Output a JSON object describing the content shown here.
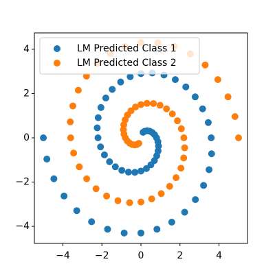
{
  "chart_data": {
    "type": "scatter",
    "xlim": [
      -5.46,
      5.46
    ],
    "ylim": [
      -4.77,
      4.74
    ],
    "xticks": [
      {
        "value": -4,
        "label": "−4"
      },
      {
        "value": -2,
        "label": "−2"
      },
      0,
      2,
      4
    ],
    "yticks": [
      {
        "value": -4,
        "label": "−4"
      },
      {
        "value": -2,
        "label": "−2"
      },
      0,
      2,
      4
    ],
    "legend": "upper-left",
    "series": [
      {
        "name": "LM Predicted Class 1",
        "color": "#1f77b4",
        "x": [
          -5.0,
          -4.82,
          -4.46,
          -3.94,
          -3.29,
          -2.53,
          -1.71,
          -0.86,
          0.0,
          0.82,
          1.58,
          2.24,
          2.79,
          3.21,
          3.49,
          3.62,
          3.6,
          3.45,
          3.16,
          2.78,
          2.3,
          1.76,
          1.18,
          0.58,
          0.0,
          -0.55,
          -1.04,
          -1.47,
          -1.8,
          -2.05,
          -2.19,
          -2.24,
          -2.2,
          -2.07,
          -1.87,
          -1.61,
          -1.31,
          -0.98,
          -0.64,
          -0.31,
          0.0,
          0.28,
          0.51,
          0.69,
          0.81,
          0.88,
          0.9,
          0.87,
          0.8,
          0.7,
          0.58,
          0.45,
          0.32,
          0.2,
          0.11
        ],
        "y": [
          0.0,
          -0.96,
          -1.85,
          -2.63,
          -3.29,
          -3.79,
          -4.13,
          -4.3,
          -4.3,
          -4.13,
          -3.81,
          -3.36,
          -2.79,
          -2.15,
          -1.44,
          -0.72,
          0.0,
          0.69,
          1.31,
          1.85,
          2.3,
          2.63,
          2.84,
          2.93,
          2.9,
          2.76,
          2.52,
          2.19,
          1.8,
          1.37,
          0.91,
          0.45,
          0.0,
          -0.41,
          -0.77,
          -1.08,
          -1.31,
          -1.47,
          -1.55,
          -1.56,
          -1.5,
          -1.39,
          -1.22,
          -1.03,
          -0.81,
          -0.59,
          -0.37,
          -0.17,
          0.0,
          0.14,
          0.24,
          0.3,
          0.32,
          0.3,
          0.25
        ]
      },
      {
        "name": "LM Predicted Class 2",
        "color": "#ff7f0e",
        "x": [
          5.0,
          4.82,
          4.46,
          3.94,
          3.29,
          2.53,
          1.71,
          0.86,
          0.0,
          -0.82,
          -1.58,
          -2.24,
          -2.79,
          -3.21,
          -3.49,
          -3.62,
          -3.6,
          -3.45,
          -3.16,
          -2.78,
          -2.3,
          -1.76,
          -1.18,
          -0.58,
          0.0,
          0.55,
          1.04,
          1.47,
          1.8,
          2.05,
          2.19,
          2.24,
          2.2,
          2.07,
          1.87,
          1.61,
          1.31,
          0.98,
          0.64,
          0.31,
          0.0,
          -0.28,
          -0.51,
          -0.69,
          -0.81,
          -0.88,
          -0.9,
          -0.87,
          -0.8,
          -0.7,
          -0.58,
          -0.45,
          -0.32,
          -0.2,
          -0.11
        ],
        "y": [
          0.0,
          0.96,
          1.85,
          2.63,
          3.29,
          3.79,
          4.13,
          4.3,
          4.3,
          4.13,
          3.81,
          3.36,
          2.79,
          2.15,
          1.44,
          0.72,
          0.0,
          -0.69,
          -1.31,
          -1.85,
          -2.3,
          -2.63,
          -2.84,
          -2.93,
          -2.9,
          -2.76,
          -2.52,
          -2.19,
          -1.8,
          -1.37,
          -0.91,
          -0.45,
          0.0,
          0.41,
          0.77,
          1.08,
          1.31,
          1.47,
          1.55,
          1.56,
          1.5,
          1.39,
          1.22,
          1.03,
          0.81,
          0.59,
          0.37,
          0.17,
          0.0,
          -0.14,
          -0.24,
          -0.3,
          -0.32,
          -0.3,
          -0.25
        ]
      }
    ]
  }
}
